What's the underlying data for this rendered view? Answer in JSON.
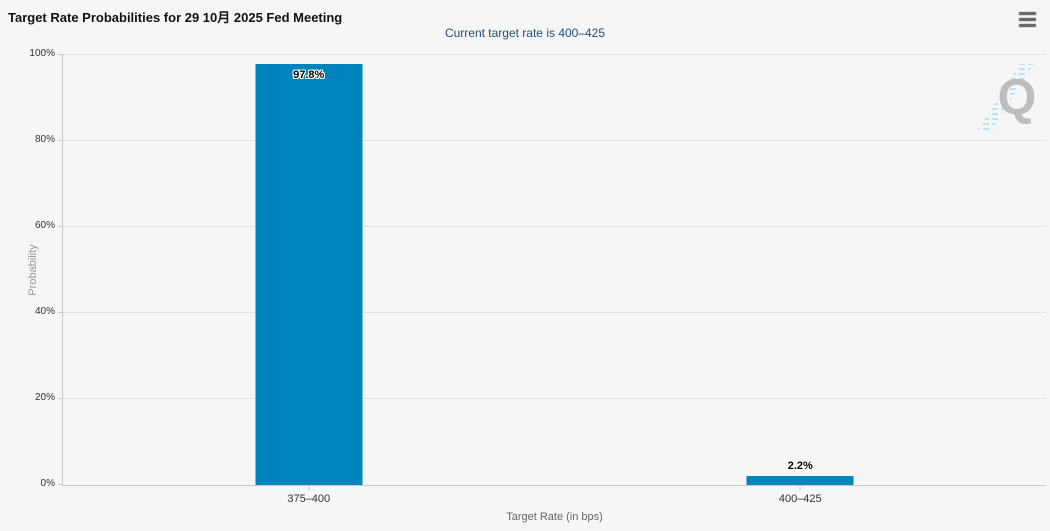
{
  "header": {
    "title": "Target Rate Probabilities for 29 10月 2025 Fed Meeting",
    "subtitle": "Current target rate is 400–425"
  },
  "menu": {
    "icon": "hamburger-icon"
  },
  "chart_data": {
    "type": "bar",
    "title": "Target Rate Probabilities for 29 10月 2025 Fed Meeting",
    "subtitle": "Current target rate is 400–425",
    "categories": [
      "375–400",
      "400–425"
    ],
    "values": [
      97.8,
      2.2
    ],
    "value_labels": [
      "97.8%",
      "2.2%"
    ],
    "xlabel": "Target Rate (in bps)",
    "ylabel": "Probability",
    "ylim": [
      0,
      100
    ],
    "yticks": [
      "0%",
      "20%",
      "40%",
      "60%",
      "80%",
      "100%"
    ],
    "grid": "horizontal-dotted",
    "legend_position": "none",
    "bar_color": "#0084bd"
  },
  "watermark": {
    "letter": "Q"
  },
  "colors": {
    "background": "#f6f6f6",
    "bar": "#0084bd",
    "subtitle_text": "#1f4e79",
    "gridline": "#cfcfcf",
    "axis_line": "#c9c9c9",
    "watermark_letter": "#bdbdbd",
    "watermark_hatch": "#b7e3f5"
  }
}
